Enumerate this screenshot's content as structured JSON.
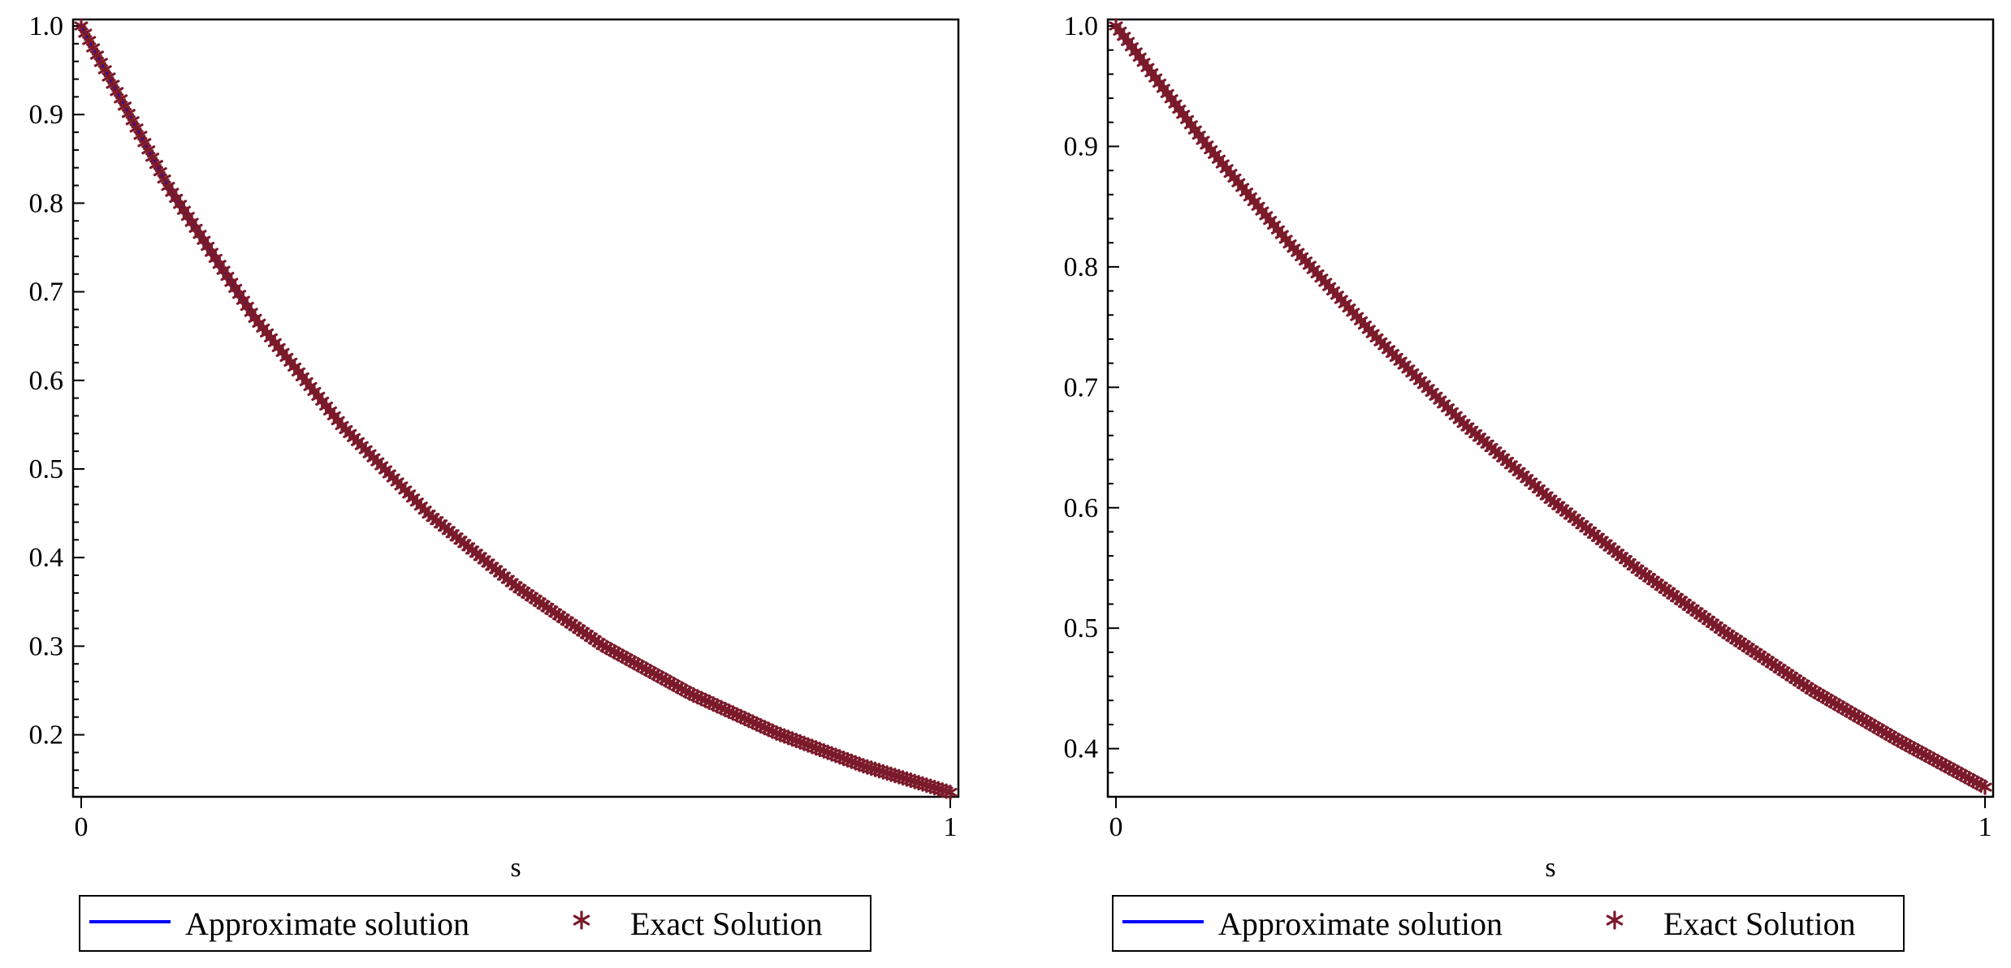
{
  "chart_data": [
    {
      "type": "line",
      "xlabel": "s",
      "ylabel": "",
      "xlim": [
        0,
        1
      ],
      "ylim": [
        0.13,
        1.0
      ],
      "x_ticks": [
        0,
        1
      ],
      "y_ticks": [
        0.2,
        0.3,
        0.4,
        0.5,
        0.6,
        0.7,
        0.8,
        0.9,
        1.0
      ],
      "y_tick_labels": [
        "0.2",
        "0.3",
        "0.4",
        "0.5",
        "0.6",
        "0.7",
        "0.8",
        "0.9",
        "1.0"
      ],
      "x_tick_labels": [
        "0",
        "1"
      ],
      "grid": false,
      "legend_position": "bottom",
      "series": [
        {
          "name": "Approximate solution",
          "style": "line",
          "color": "#0000ff",
          "x": [
            0,
            0.1,
            0.2,
            0.3,
            0.4,
            0.5,
            0.6,
            0.7,
            0.8,
            0.9,
            1.0
          ],
          "y": [
            1.0,
            0.819,
            0.67,
            0.549,
            0.449,
            0.368,
            0.301,
            0.247,
            0.202,
            0.165,
            0.135
          ]
        },
        {
          "name": "Exact Solution",
          "style": "markers",
          "marker": "star",
          "color": "#7b1a2a",
          "x": [
            0,
            0.1,
            0.2,
            0.3,
            0.4,
            0.5,
            0.6,
            0.7,
            0.8,
            0.9,
            1.0
          ],
          "y": [
            1.0,
            0.819,
            0.67,
            0.549,
            0.449,
            0.368,
            0.301,
            0.247,
            0.202,
            0.165,
            0.135
          ]
        }
      ]
    },
    {
      "type": "line",
      "xlabel": "s",
      "ylabel": "",
      "xlim": [
        0,
        1
      ],
      "ylim": [
        0.36,
        1.0
      ],
      "x_ticks": [
        0,
        1
      ],
      "y_ticks": [
        0.4,
        0.5,
        0.6,
        0.7,
        0.8,
        0.9,
        1.0
      ],
      "y_tick_labels": [
        "0.4",
        "0.5",
        "0.6",
        "0.7",
        "0.8",
        "0.9",
        "1.0"
      ],
      "x_tick_labels": [
        "0",
        "1"
      ],
      "grid": false,
      "legend_position": "bottom",
      "series": [
        {
          "name": "Approximate solution",
          "style": "line",
          "color": "#0000ff",
          "x": [
            0,
            0.1,
            0.2,
            0.3,
            0.4,
            0.5,
            0.6,
            0.7,
            0.8,
            0.9,
            1.0
          ],
          "y": [
            1.0,
            0.905,
            0.819,
            0.741,
            0.67,
            0.607,
            0.549,
            0.497,
            0.449,
            0.407,
            0.368
          ]
        },
        {
          "name": "Exact Solution",
          "style": "markers",
          "marker": "star",
          "color": "#7b1a2a",
          "x": [
            0,
            0.1,
            0.2,
            0.3,
            0.4,
            0.5,
            0.6,
            0.7,
            0.8,
            0.9,
            1.0
          ],
          "y": [
            1.0,
            0.905,
            0.819,
            0.741,
            0.67,
            0.607,
            0.549,
            0.497,
            0.449,
            0.407,
            0.368
          ]
        }
      ]
    }
  ]
}
